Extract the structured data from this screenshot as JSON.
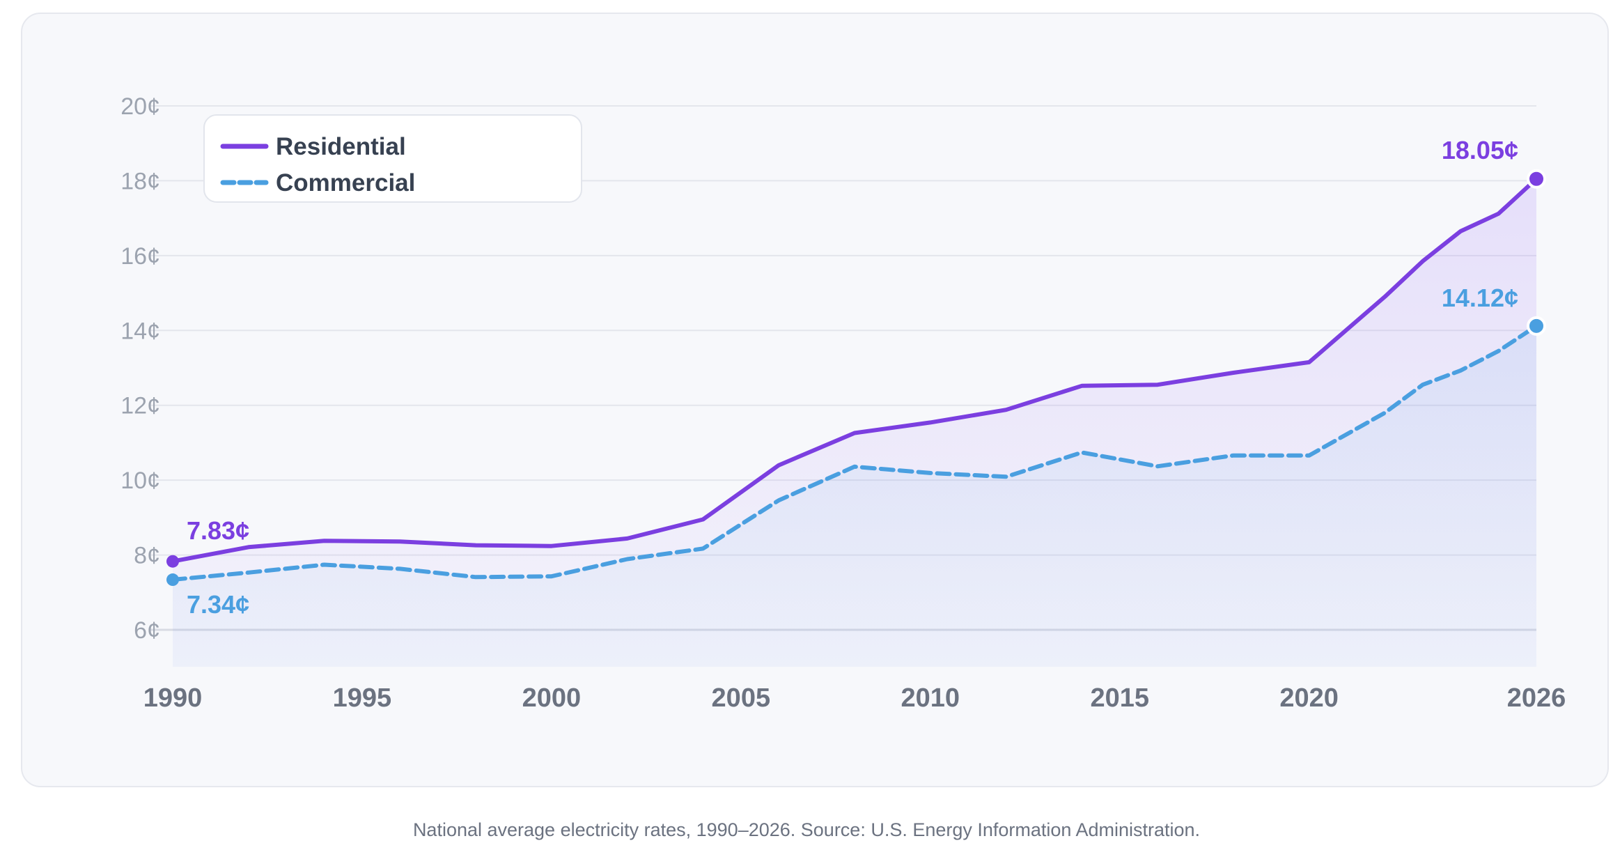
{
  "chart_data": {
    "type": "line",
    "x": [
      1990,
      1992,
      1994,
      1996,
      1998,
      2000,
      2002,
      2004,
      2006,
      2008,
      2010,
      2012,
      2014,
      2016,
      2018,
      2020,
      2022,
      2023,
      2024,
      2025,
      2026
    ],
    "series": [
      {
        "name": "Residential",
        "color": "#7b3fe0",
        "style": "solid",
        "values": [
          7.83,
          8.21,
          8.38,
          8.36,
          8.26,
          8.24,
          8.44,
          8.95,
          10.4,
          11.26,
          11.54,
          11.88,
          12.52,
          12.55,
          12.87,
          13.15,
          14.9,
          15.85,
          16.65,
          17.12,
          18.05
        ]
      },
      {
        "name": "Commercial",
        "color": "#4a9fe0",
        "style": "dashed",
        "values": [
          7.34,
          7.53,
          7.74,
          7.63,
          7.41,
          7.43,
          7.89,
          8.17,
          9.46,
          10.36,
          10.19,
          10.09,
          10.74,
          10.37,
          10.66,
          10.66,
          11.8,
          12.55,
          12.93,
          13.45,
          14.12
        ]
      }
    ],
    "x_ticks": [
      "1990",
      "1995",
      "2000",
      "2005",
      "2010",
      "2015",
      "2020",
      "2026"
    ],
    "y_ticks": [
      "6¢",
      "8¢",
      "10¢",
      "12¢",
      "14¢",
      "16¢",
      "18¢",
      "20¢"
    ],
    "ylim": [
      6,
      20
    ],
    "xlim": [
      1990,
      2026
    ],
    "grid": true,
    "legend_position": "top-left",
    "annotations": {
      "res_start": "7.83¢",
      "com_start": "7.34¢",
      "res_end": "18.05¢",
      "com_end": "14.12¢"
    }
  },
  "caption": "National average electricity rates, 1990–2026. Source: U.S. Energy Information Administration."
}
